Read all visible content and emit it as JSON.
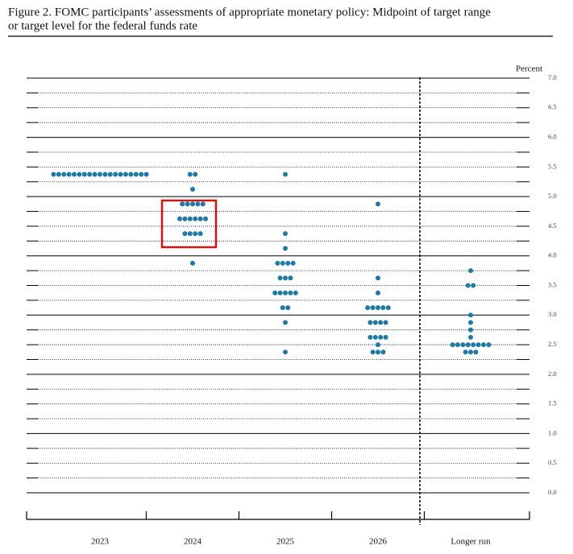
{
  "chart_data": {
    "type": "dot",
    "title": [
      "Figure 2.  FOMC participants’ assessments of appropriate monetary policy: Midpoint of target range",
      "or target level for the federal funds rate"
    ],
    "y_label": "Percent",
    "categories": [
      "2023",
      "2024",
      "2025",
      "2026",
      "Longer run"
    ],
    "color": "#1b7aaa",
    "columns": [
      {
        "levels": [
          5.375
        ],
        "counts": [
          19
        ]
      },
      {
        "levels": [
          5.375,
          5.125,
          4.875,
          4.625,
          4.375,
          3.875
        ],
        "counts": [
          2,
          1,
          5,
          6,
          4,
          1
        ]
      },
      {
        "levels": [
          5.375,
          4.375,
          4.125,
          3.875,
          3.625,
          3.375,
          3.125,
          2.875,
          2.375
        ],
        "counts": [
          1,
          1,
          1,
          4,
          3,
          5,
          2,
          1,
          1
        ]
      },
      {
        "levels": [
          4.875,
          3.625,
          3.375,
          3.125,
          2.875,
          2.625,
          2.5,
          2.375
        ],
        "counts": [
          1,
          1,
          1,
          5,
          4,
          4,
          1,
          3
        ]
      },
      {
        "levels": [
          3.75,
          3.5,
          3.0,
          2.875,
          2.75,
          2.625,
          2.5,
          2.375
        ],
        "counts": [
          1,
          2,
          1,
          1,
          1,
          1,
          8,
          3
        ]
      }
    ],
    "ylim": [
      0,
      7
    ],
    "yticks": [
      {
        "value": 0,
        "label": "0.0"
      },
      {
        "value": 0.5,
        "label": "0.5"
      },
      {
        "value": 1,
        "label": "1.0"
      },
      {
        "value": 1.5,
        "label": "1.5"
      },
      {
        "value": 2,
        "label": "2.0"
      },
      {
        "value": 2.5,
        "label": "2.5"
      },
      {
        "value": 3,
        "label": "3.0"
      },
      {
        "value": 3.5,
        "label": "3.5"
      },
      {
        "value": 4,
        "label": "4.0"
      },
      {
        "value": 4.5,
        "label": "4.5"
      },
      {
        "value": 5,
        "label": "5.0"
      },
      {
        "value": 5.5,
        "label": "5.5"
      },
      {
        "value": 6,
        "label": "6.0"
      },
      {
        "value": 6.5,
        "label": "6.5"
      },
      {
        "value": 7,
        "label": "7.0"
      }
    ],
    "grid": true
  }
}
